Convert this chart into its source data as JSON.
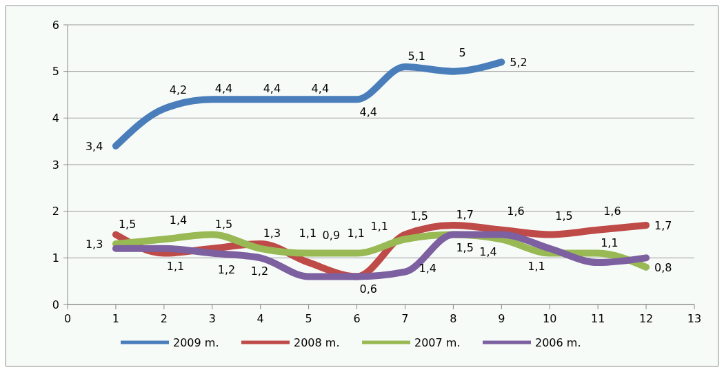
{
  "chart_data": {
    "type": "line",
    "xlim": [
      0,
      13
    ],
    "xticks": [
      0,
      1,
      2,
      3,
      4,
      5,
      6,
      7,
      8,
      9,
      10,
      11,
      12,
      13
    ],
    "ylim": [
      0,
      6
    ],
    "yticks": [
      0,
      1,
      2,
      3,
      4,
      5,
      6
    ],
    "grid": "y",
    "legend": "bottom",
    "marker": "none",
    "line_style": "solid",
    "x": [
      1,
      2,
      3,
      4,
      5,
      6,
      7,
      8,
      9,
      10,
      11,
      12
    ],
    "series": [
      {
        "name": "2009 m.",
        "color": "#4a7ebb",
        "values": [
          3.4,
          4.2,
          4.4,
          4.4,
          4.4,
          4.4,
          5.1,
          5,
          5.2,
          null,
          null,
          null
        ],
        "value_labels": [
          "3,4",
          "4,2",
          "4,4",
          "4,4",
          "4,4",
          "4,4",
          "5,1",
          "5",
          "5,2",
          null,
          null,
          null
        ]
      },
      {
        "name": "2008 m.",
        "color": "#be4b48",
        "values": [
          1.5,
          1.1,
          1.2,
          1.3,
          0.9,
          0.6,
          1.5,
          1.7,
          1.6,
          1.5,
          1.6,
          1.7
        ],
        "value_labels": [
          "1,5",
          "1,1",
          "1,2",
          "1,3",
          "0,9",
          "0,6",
          "1,5",
          "1,7",
          "1,6",
          "1,5",
          "1,6",
          "1,7"
        ]
      },
      {
        "name": "2007 m.",
        "color": "#98b954",
        "values": [
          1.3,
          1.4,
          1.5,
          1.2,
          1.1,
          1.1,
          1.4,
          1.5,
          1.4,
          1.1,
          1.1,
          0.8
        ],
        "value_labels": [
          "1,3",
          "1,4",
          "1,5",
          "1,2",
          "1,1",
          "1,1",
          "1,4",
          "1,5",
          "1,4",
          "1,1",
          "1,1",
          "0,8"
        ]
      },
      {
        "name": "2006 m.",
        "color": "#7d60a0",
        "values": [
          1.2,
          1.2,
          1.1,
          1.0,
          0.6,
          0.6,
          0.7,
          1.5,
          1.5,
          1.2,
          0.9,
          1.0
        ]
      }
    ],
    "annotations": [
      {
        "text": "1,1",
        "x": 6,
        "y": 1.1
      }
    ]
  }
}
